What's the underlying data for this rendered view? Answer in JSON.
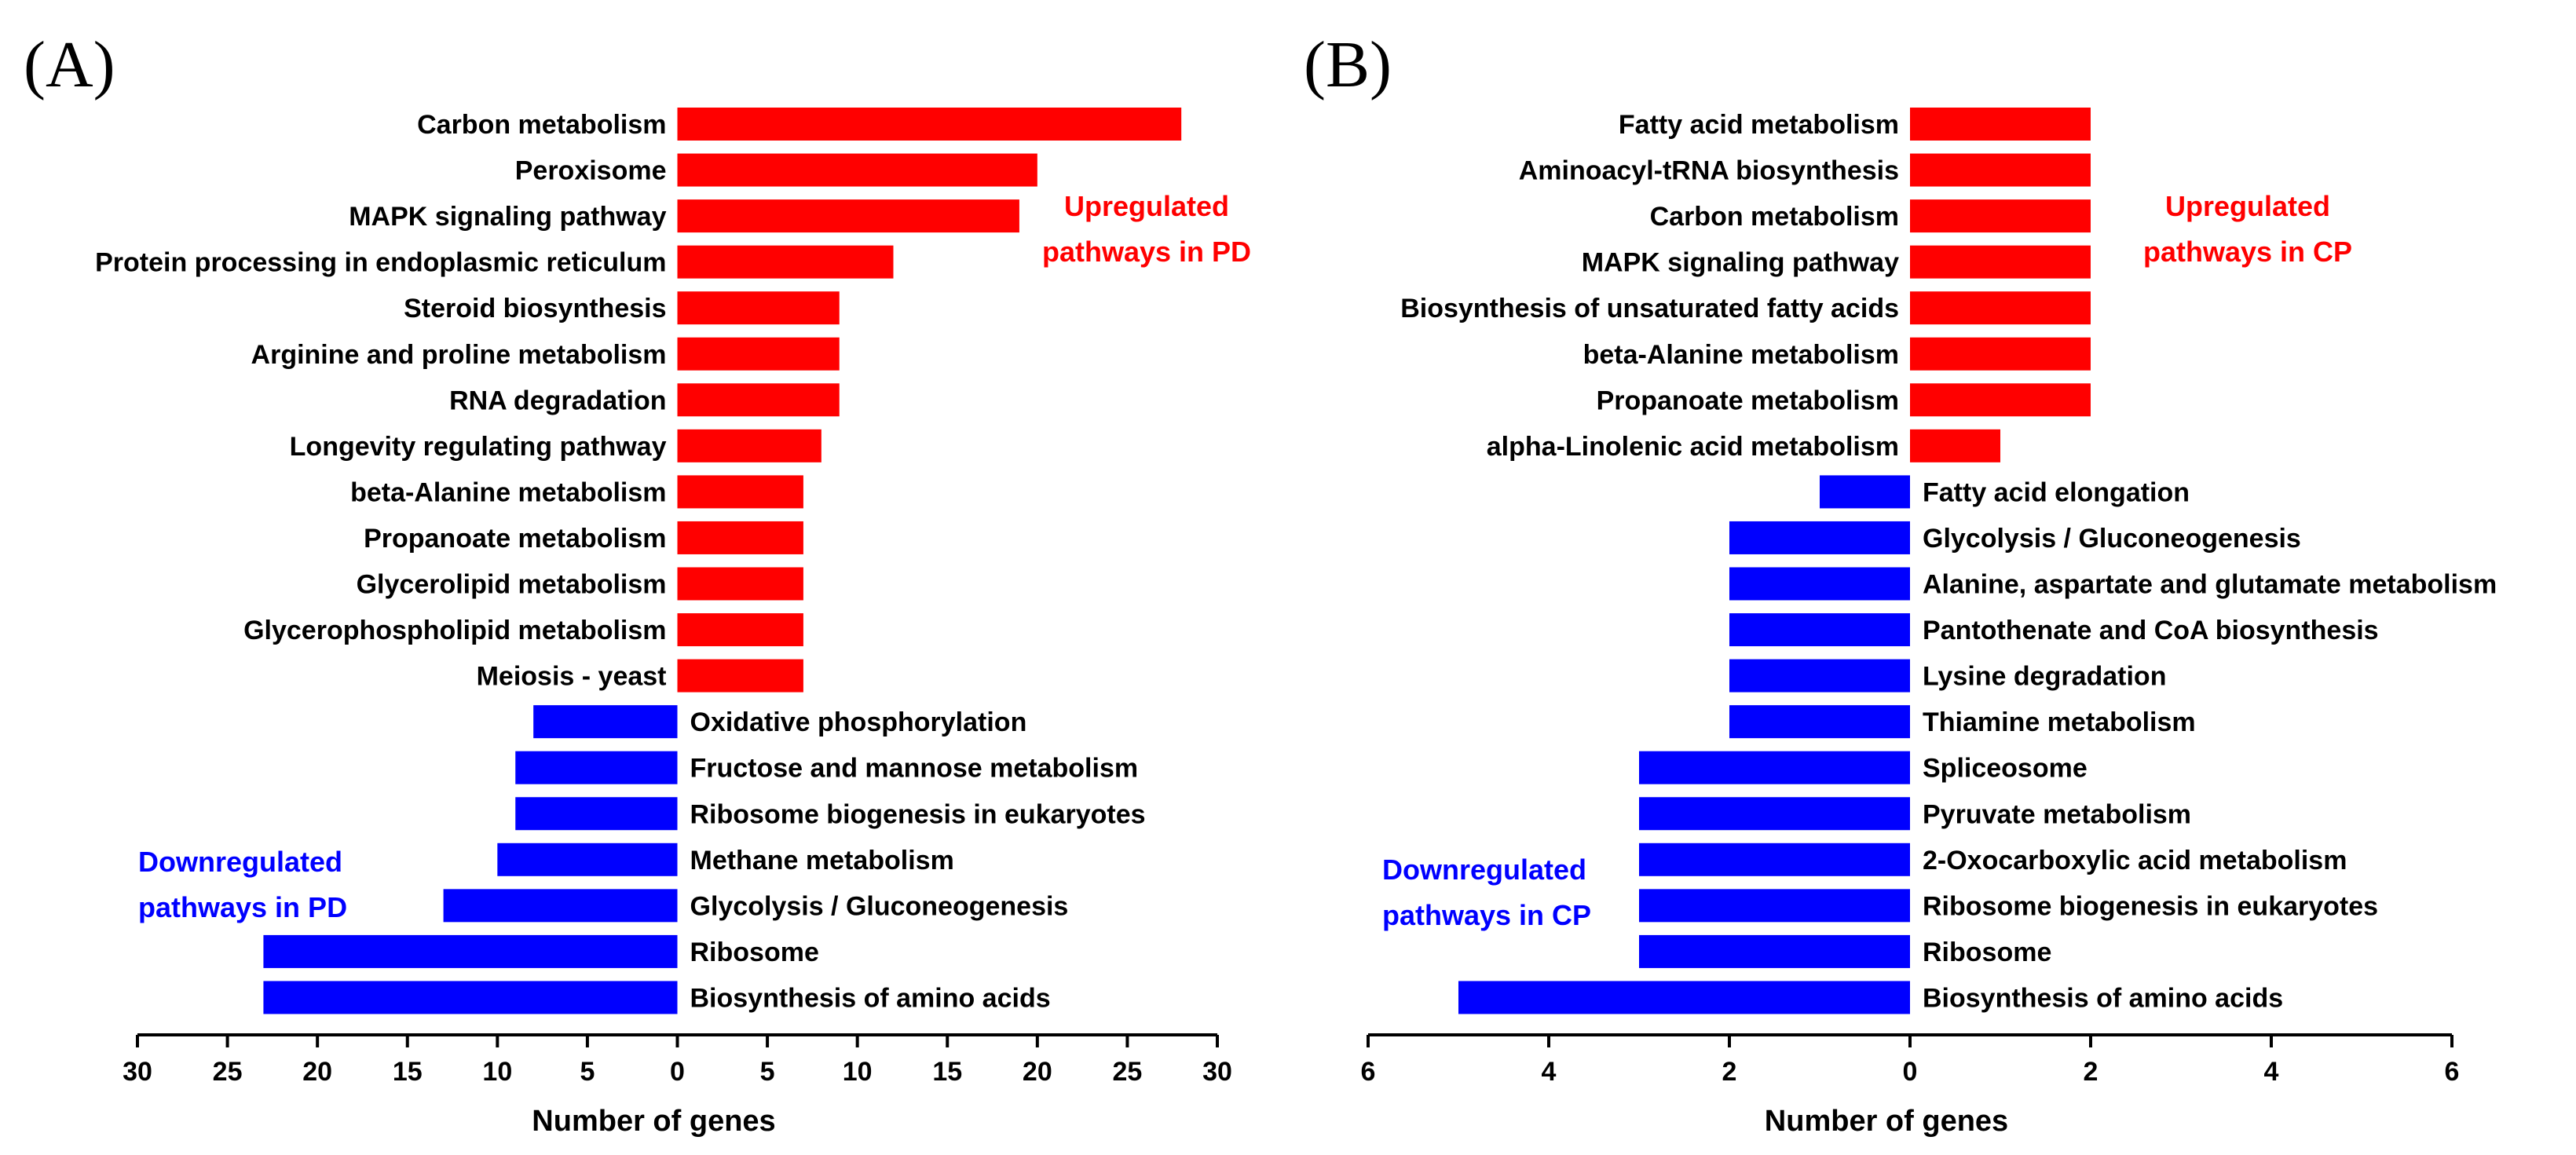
{
  "chart_data": [
    {
      "type": "bar",
      "orientation": "horizontal-diverging",
      "panel_label": "(A)",
      "xlabel": "Number of genes",
      "xlim": [
        -30,
        30
      ],
      "xticks": [
        -30,
        -25,
        -20,
        -15,
        -10,
        -5,
        0,
        5,
        10,
        15,
        20,
        25,
        30
      ],
      "xtick_labels": [
        "30",
        "25",
        "20",
        "15",
        "10",
        "5",
        "0",
        "5",
        "10",
        "15",
        "20",
        "25",
        "30"
      ],
      "colors": {
        "up": "#ff0000",
        "down": "#0000ff"
      },
      "up_annotation": [
        "Upregulated",
        "pathways in PD"
      ],
      "down_annotation": [
        "Downregulated",
        "pathways in PD"
      ],
      "series": [
        {
          "name": "Upregulated pathways in PD",
          "categories": [
            "Carbon metabolism",
            "Peroxisome",
            "MAPK signaling pathway",
            "Protein processing in endoplasmic reticulum",
            "Steroid biosynthesis",
            "Arginine and proline metabolism",
            "RNA degradation",
            "Longevity regulating pathway",
            "beta-Alanine metabolism",
            "Propanoate metabolism",
            "Glycerolipid metabolism",
            "Glycerophospholipid metabolism",
            "Meiosis - yeast"
          ],
          "values": [
            28,
            20,
            19,
            12,
            9,
            9,
            9,
            8,
            7,
            7,
            7,
            7,
            7
          ]
        },
        {
          "name": "Downregulated pathways in PD",
          "categories": [
            "Oxidative phosphorylation",
            "Fructose and mannose metabolism",
            "Ribosome biogenesis in eukaryotes",
            "Methane metabolism",
            "Glycolysis / Gluconeogenesis",
            "Ribosome",
            "Biosynthesis of amino acids"
          ],
          "values": [
            8,
            9,
            9,
            10,
            13,
            23,
            23
          ]
        }
      ]
    },
    {
      "type": "bar",
      "orientation": "horizontal-diverging",
      "panel_label": "(B)",
      "xlabel": "Number of genes",
      "xlim": [
        -6,
        6
      ],
      "xticks": [
        -6,
        -4,
        -2,
        0,
        2,
        4,
        6
      ],
      "xtick_labels": [
        "6",
        "4",
        "2",
        "0",
        "2",
        "4",
        "6"
      ],
      "colors": {
        "up": "#ff0000",
        "down": "#0000ff"
      },
      "up_annotation": [
        "Upregulated",
        "pathways in CP"
      ],
      "down_annotation": [
        "Downregulated",
        "pathways in CP"
      ],
      "series": [
        {
          "name": "Upregulated pathways in CP",
          "categories": [
            "Fatty acid metabolism",
            "Aminoacyl-tRNA biosynthesis",
            "Carbon metabolism",
            "MAPK signaling pathway",
            "Biosynthesis of unsaturated fatty acids",
            "beta-Alanine metabolism",
            "Propanoate metabolism",
            "alpha-Linolenic acid metabolism"
          ],
          "values": [
            2,
            2,
            2,
            2,
            2,
            2,
            2,
            1
          ]
        },
        {
          "name": "Downregulated pathways in CP",
          "categories": [
            "Fatty acid elongation",
            "Glycolysis / Gluconeogenesis",
            "Alanine, aspartate and glutamate metabolism",
            "Pantothenate and CoA biosynthesis",
            "Lysine degradation",
            "Thiamine metabolism",
            "Spliceosome",
            "Pyruvate metabolism",
            "2-Oxocarboxylic acid metabolism",
            "Ribosome biogenesis in eukaryotes",
            "Ribosome",
            "Biosynthesis of amino acids"
          ],
          "values": [
            1,
            2,
            2,
            2,
            2,
            2,
            3,
            3,
            3,
            3,
            3,
            5
          ]
        }
      ]
    }
  ]
}
